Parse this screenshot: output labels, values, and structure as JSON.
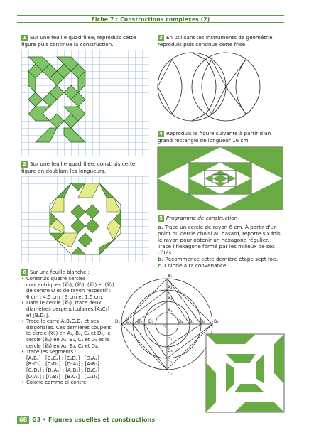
{
  "header": {
    "title": "Fiche 7 : Constructions complexes (2)"
  },
  "exercises": {
    "ex1": {
      "num": "1",
      "text": "Sur une feuille quadrillée, reproduis cette figure puis continue la construction."
    },
    "ex2": {
      "num": "2",
      "text": "Sur une feuille quadrillée, construis cette figure en doublant les longueurs."
    },
    "ex3": {
      "num": "3",
      "text": "En utilisant tes instruments de géométrie, reproduis puis continue cette frise."
    },
    "ex4": {
      "num": "4",
      "text": "Reproduis la figure suivante à partir d'un grand rectangle de longueur 16 cm."
    },
    "ex5": {
      "num": "5",
      "title": "Programme de construction",
      "a_label": "a.",
      "a_text": "Trace un cercle de rayon 6 cm. À partir d'un point du cercle choisi au hasard, reporte six fois le rayon pour obtenir un hexagone régulier. Trace l'hexagone formé par les milieux de ses côtés.",
      "b_label": "b.",
      "b_text": "Recommence cette dernière étape sept fois.",
      "c_label": "c.",
      "c_text": "Colorie à ta convenance."
    },
    "ex6": {
      "num": "6",
      "intro": "Sur une feuille blanche :",
      "b1": "Construis quatre cercles concentriques (𝒞₁), (𝒞₂), (𝒞₃) et (𝒞₄) de centre O et de rayon respectif : 6 cm ; 4,5 cm ; 3 cm et 1,5 cm.",
      "b2": "Dans le cercle (𝒞₁), trace deux diamètres perpendiculaires [A₁C₁] et [B₁D₁].",
      "b3": "Trace le carré A₁B₁C₁D₁ et ses diagonales. Ces dernières coupent le cercle (𝒞₂) en A₂, B₂, C₂ et D₂, le cercle (𝒞₃) en A₃, B₃, C₃ et D₃ et le cercle (𝒞₄) en A₄, B₄, C₄ et D₄.",
      "b4": "Trace les segments :",
      "s1": "[A₁B₂] ; [B₁C₂] ; [C₁D₂] ; [D₁A₂]",
      "s2": "[B₂C₃] ; [C₂D₃] ; [D₂A₃] ; [A₂B₃]",
      "s3": "[C₃D₄] ; [D₃A₄] ; [A₃B₄] ; [B₃C₄]",
      "s4": "[D₄A₁] ; [A₄B₁] ; [B₄C₁] ; [C₄D₁]",
      "b5": "Colorie comme ci-contre."
    }
  },
  "figure6_labels": {
    "A1": "A₁",
    "A2": "A₂",
    "A3": "A₃",
    "A4": "A₄",
    "B1": "B₁",
    "B2": "B₂",
    "B3": "B₃",
    "B4": "B₄",
    "C1": "C₁",
    "C2": "C₂",
    "C3": "C₃",
    "C4": "C₄",
    "D1": "D₁",
    "D2": "D₂",
    "D3": "D₃",
    "D4": "D₄",
    "O": "O"
  },
  "footer": {
    "page": "68",
    "text": "G3 • Figures usuelles et constructions"
  },
  "colors": {
    "green": "#6aaa44",
    "light_green": "#7fc36a",
    "yellow": "#e2ea8a"
  }
}
